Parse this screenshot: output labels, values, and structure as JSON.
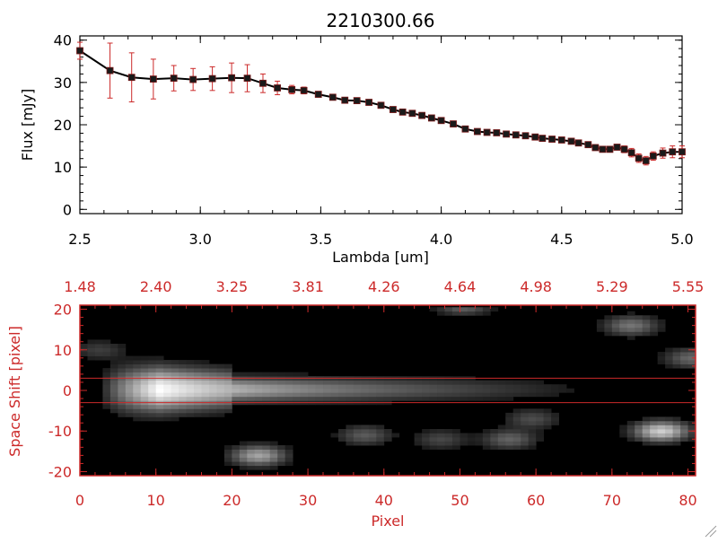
{
  "colors": {
    "background": "#ffffff",
    "axis_top": "#000000",
    "accent_red": "#cc2a2a",
    "marker": "#1a1a1a",
    "image_bg": "#000000"
  },
  "chart_data": [
    {
      "type": "line",
      "title": "2210300.66",
      "xlabel": "Lambda [um]",
      "ylabel": "Flux [mJy]",
      "xlim": [
        2.5,
        5.0
      ],
      "ylim": [
        -1,
        41
      ],
      "xticks": [
        "2.5",
        "3.0",
        "3.5",
        "4.0",
        "4.5",
        "5.0"
      ],
      "xtick_values": [
        2.5,
        3.0,
        3.5,
        4.0,
        4.5,
        5.0
      ],
      "yticks": [
        "0",
        "10",
        "20",
        "30",
        "40"
      ],
      "ytick_values": [
        0,
        10,
        20,
        30,
        40
      ],
      "grid": false,
      "series": [
        {
          "x": [
            2.5,
            2.625,
            2.715,
            2.805,
            2.89,
            2.97,
            3.05,
            3.13,
            3.195,
            3.26,
            3.32,
            3.38,
            3.43,
            3.49,
            3.55,
            3.6,
            3.65,
            3.7,
            3.75,
            3.8,
            3.84,
            3.88,
            3.92,
            3.96,
            4.0,
            4.05,
            4.1,
            4.15,
            4.19,
            4.23,
            4.27,
            4.31,
            4.35,
            4.39,
            4.42,
            4.46,
            4.5,
            4.54,
            4.57,
            4.61,
            4.64,
            4.67,
            4.7,
            4.73,
            4.76,
            4.79,
            4.82,
            4.85,
            4.88,
            4.92,
            4.96,
            5.0
          ],
          "y": [
            37.5,
            32.8,
            31.2,
            30.8,
            31.0,
            30.7,
            30.9,
            31.1,
            31.0,
            29.8,
            28.7,
            28.3,
            28.1,
            27.2,
            26.5,
            25.8,
            25.7,
            25.3,
            24.6,
            23.6,
            23.0,
            22.7,
            22.2,
            21.6,
            21.0,
            20.2,
            19.0,
            18.4,
            18.2,
            18.1,
            17.8,
            17.6,
            17.4,
            17.1,
            16.8,
            16.6,
            16.4,
            16.1,
            15.7,
            15.3,
            14.6,
            14.2,
            14.2,
            14.7,
            14.2,
            13.4,
            12.1,
            11.5,
            12.6,
            13.3,
            13.6,
            13.6
          ],
          "err": [
            2.0,
            6.5,
            5.8,
            4.7,
            3.0,
            2.6,
            2.8,
            3.5,
            3.2,
            2.2,
            1.6,
            1.0,
            0.8,
            0.5,
            0.5,
            0.5,
            0.5,
            0.4,
            0.4,
            0.4,
            0.4,
            0.4,
            0.4,
            0.4,
            0.4,
            0.4,
            0.4,
            0.4,
            0.4,
            0.4,
            0.4,
            0.4,
            0.4,
            0.4,
            0.4,
            0.4,
            0.4,
            0.4,
            0.4,
            0.4,
            0.4,
            0.4,
            0.4,
            0.6,
            0.8,
            1.0,
            1.0,
            1.0,
            1.0,
            1.2,
            1.4,
            1.4
          ]
        }
      ]
    },
    {
      "type": "heatmap",
      "xlabel": "Pixel",
      "ylabel": "Space Shift [pixel]",
      "xlim": [
        0,
        81
      ],
      "ylim": [
        -21,
        21
      ],
      "xticks": [
        "0",
        "10",
        "20",
        "30",
        "40",
        "50",
        "60",
        "70",
        "80"
      ],
      "xtick_values": [
        0,
        10,
        20,
        30,
        40,
        50,
        60,
        70,
        80
      ],
      "yticks": [
        "-20",
        "-10",
        "0",
        "10",
        "20"
      ],
      "ytick_values": [
        -20,
        -10,
        0,
        10,
        20
      ],
      "top_axis_labels": [
        "1.48",
        "2.40",
        "3.25",
        "3.81",
        "4.26",
        "4.64",
        "4.98",
        "5.29",
        "5.55"
      ],
      "extraction_window": [
        -3,
        3
      ],
      "trace": {
        "y_center": 0.3,
        "peak_x": 10,
        "peak_intensity": 1.0,
        "end_x": 70
      },
      "blobs": [
        {
          "x": 23,
          "y": -16,
          "intensity": 0.55
        },
        {
          "x": 37,
          "y": -11,
          "intensity": 0.25
        },
        {
          "x": 56,
          "y": -12,
          "intensity": 0.28
        },
        {
          "x": 47,
          "y": -12,
          "intensity": 0.18
        },
        {
          "x": 72,
          "y": 16,
          "intensity": 0.35
        },
        {
          "x": 76,
          "y": -10,
          "intensity": 0.75
        },
        {
          "x": 50,
          "y": 21,
          "intensity": 0.3
        },
        {
          "x": 59,
          "y": -7,
          "intensity": 0.2
        },
        {
          "x": 80,
          "y": 8,
          "intensity": 0.3
        },
        {
          "x": 2,
          "y": 10,
          "intensity": 0.15
        }
      ]
    }
  ]
}
